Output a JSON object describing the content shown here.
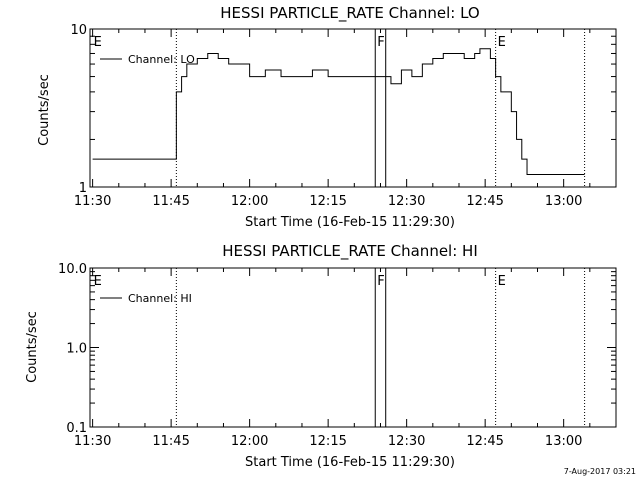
{
  "chart_data": [
    {
      "type": "line",
      "title": "HESSI PARTICLE_RATE Channel: LO",
      "xlabel": "Start Time (16-Feb-15 11:29:30)",
      "ylabel": "Counts/sec",
      "xlim": [
        "11:30",
        "13:10"
      ],
      "ylim": [
        1,
        10
      ],
      "yscale": "log",
      "x_tick_labels": [
        "11:30",
        "11:45",
        "12:00",
        "12:15",
        "12:30",
        "12:45",
        "13:00"
      ],
      "y_tick_labels": [
        "1",
        "10"
      ],
      "legend": [
        "Channel: LO"
      ],
      "legend_position": "top-left",
      "markers": [
        {
          "label": "E",
          "time": "11:30",
          "style": "none"
        },
        {
          "label": "",
          "time": "11:46",
          "style": "dotted"
        },
        {
          "label": "F",
          "time": "12:24",
          "style": "solid"
        },
        {
          "label": "",
          "time": "12:26",
          "style": "solid"
        },
        {
          "label": "E",
          "time": "12:47",
          "style": "dotted"
        },
        {
          "label": "",
          "time": "13:04",
          "style": "dotted"
        }
      ],
      "series": [
        {
          "name": "Channel: LO",
          "x": [
            "11:30",
            "11:33",
            "11:36",
            "11:39",
            "11:42",
            "11:45",
            "11:46",
            "11:47",
            "11:48",
            "11:50",
            "11:52",
            "11:54",
            "11:56",
            "11:58",
            "12:00",
            "12:03",
            "12:06",
            "12:09",
            "12:12",
            "12:15",
            "12:18",
            "12:21",
            "12:23",
            "12:25",
            "12:27",
            "12:29",
            "12:31",
            "12:33",
            "12:35",
            "12:37",
            "12:39",
            "12:41",
            "12:43",
            "12:44",
            "12:46",
            "12:47",
            "12:48",
            "12:49",
            "12:50",
            "12:51",
            "12:52",
            "12:53",
            "12:55",
            "12:58",
            "13:01",
            "13:04"
          ],
          "y": [
            1.5,
            1.5,
            1.5,
            1.5,
            1.5,
            1.5,
            4,
            5,
            6,
            6.5,
            7,
            6.5,
            6,
            6,
            5,
            5.5,
            5,
            5,
            5.5,
            5,
            5,
            5,
            5,
            5,
            4.5,
            5.5,
            5,
            6,
            6.5,
            7,
            7,
            6.5,
            7,
            7.5,
            6.5,
            5,
            4,
            4,
            3,
            2,
            1.5,
            1.2,
            1.2,
            1.2,
            1.2,
            1.2
          ]
        }
      ]
    },
    {
      "type": "line",
      "title": "HESSI PARTICLE_RATE Channel: HI",
      "xlabel": "Start Time (16-Feb-15 11:29:30)",
      "ylabel": "Counts/sec",
      "xlim": [
        "11:30",
        "13:10"
      ],
      "ylim": [
        0.1,
        10
      ],
      "yscale": "log",
      "x_tick_labels": [
        "11:30",
        "11:45",
        "12:00",
        "12:15",
        "12:30",
        "12:45",
        "13:00"
      ],
      "y_tick_labels": [
        "0.1",
        "1.0",
        "10.0"
      ],
      "legend": [
        "Channel: HI"
      ],
      "legend_position": "top-left",
      "markers": [
        {
          "label": "E",
          "time": "11:30",
          "style": "none"
        },
        {
          "label": "",
          "time": "11:46",
          "style": "dotted"
        },
        {
          "label": "F",
          "time": "12:24",
          "style": "solid"
        },
        {
          "label": "",
          "time": "12:26",
          "style": "solid"
        },
        {
          "label": "E",
          "time": "12:47",
          "style": "dotted"
        },
        {
          "label": "",
          "time": "13:04",
          "style": "dotted"
        }
      ],
      "series": [
        {
          "name": "Channel: HI",
          "x": [],
          "y": []
        }
      ]
    }
  ],
  "footer": {
    "timestamp": "7-Aug-2017 03:21"
  }
}
